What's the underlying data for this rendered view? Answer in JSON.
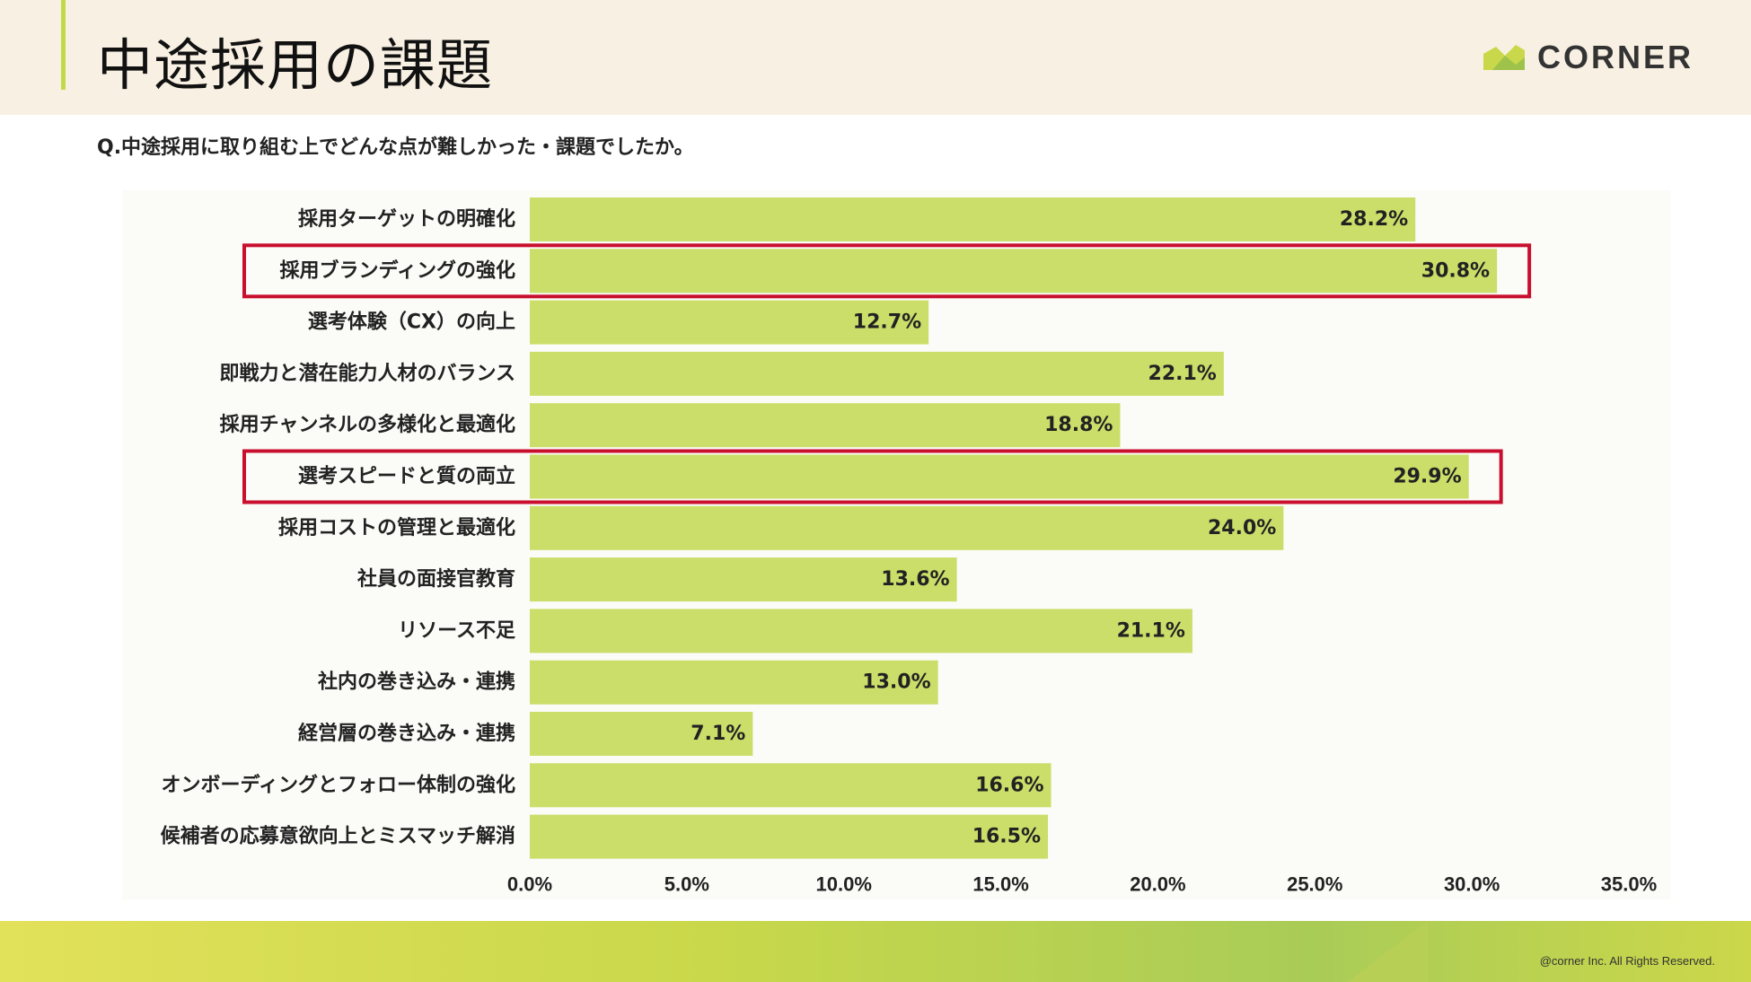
{
  "header": {
    "title": "中途採用の課題",
    "logo_text": "CORNER"
  },
  "question": "Q.中途採用に取り組む上でどんな点が難しかった・課題でしたか。",
  "footer": {
    "copyright": "@corner Inc. All Rights Reserved."
  },
  "colors": {
    "bar": "#cade69",
    "highlight": "#c8102e",
    "accent": "#c2d94a"
  },
  "chart_data": {
    "type": "bar",
    "orientation": "horizontal",
    "categories": [
      "採用ターゲットの明確化",
      "採用ブランディングの強化",
      "選考体験（CX）の向上",
      "即戦力と潜在能力人材のバランス",
      "採用チャンネルの多様化と最適化",
      "選考スピードと質の両立",
      "採用コストの管理と最適化",
      "社員の面接官教育",
      "リソース不足",
      "社内の巻き込み・連携",
      "経営層の巻き込み・連携",
      "オンボーディングとフォロー体制の強化",
      "候補者の応募意欲向上とミスマッチ解消"
    ],
    "values": [
      28.2,
      30.8,
      12.7,
      22.1,
      18.8,
      29.9,
      24.0,
      13.6,
      21.1,
      13.0,
      7.1,
      16.6,
      16.5
    ],
    "value_labels": [
      "28.2%",
      "30.8%",
      "12.7%",
      "22.1%",
      "18.8%",
      "29.9%",
      "24.0%",
      "13.6%",
      "21.1%",
      "13.0%",
      "7.1%",
      "16.6%",
      "16.5%"
    ],
    "highlighted": [
      1,
      5
    ],
    "xlim": [
      0,
      35
    ],
    "x_ticks": [
      "0.0%",
      "5.0%",
      "10.0%",
      "15.0%",
      "20.0%",
      "25.0%",
      "30.0%",
      "35.0%"
    ],
    "grid": false,
    "legend": "none"
  }
}
